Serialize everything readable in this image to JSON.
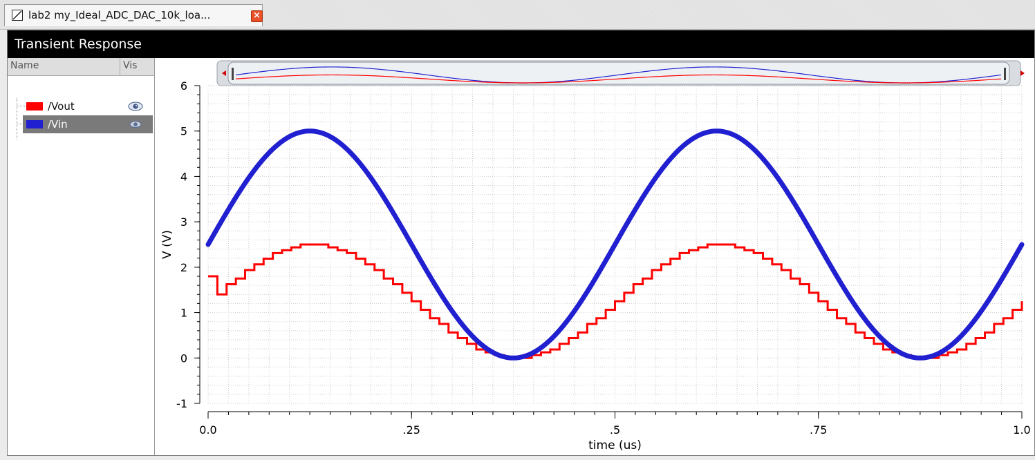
{
  "tab": {
    "title": "lab2 my_Ideal_ADC_DAC_10k_loa...",
    "icon": "waveform-doc-icon",
    "close_icon": "close-icon"
  },
  "window": {
    "title": "Transient Response"
  },
  "legend": {
    "col_name": "Name",
    "col_vis": "Vis",
    "traces": [
      {
        "name": "/Vout",
        "color": "#ff0000",
        "visible_icon": "eye-icon",
        "selected": false
      },
      {
        "name": "/Vin",
        "color": "#2020d0",
        "visible_icon": "eye-icon",
        "selected": true
      }
    ]
  },
  "chart_data": {
    "type": "line",
    "xlabel": "time (us)",
    "ylabel": "V (V)",
    "xlim": [
      0.0,
      1.0
    ],
    "ylim": [
      -1,
      6
    ],
    "x_ticks": [
      "0.0",
      ".25",
      ".5",
      ".75",
      "1.0"
    ],
    "y_ticks": [
      "-1",
      "0",
      "1",
      "2",
      "3",
      "4",
      "5",
      "6"
    ],
    "grid": true,
    "series": [
      {
        "name": "/Vin",
        "color": "#2020d0",
        "shape": "sine",
        "offset": 2.5,
        "amplitude": 2.5,
        "frequency_mhz": 2.0,
        "x_start": 0.0,
        "x_end": 1.0,
        "y_start": 2.5,
        "y_max": 5.0,
        "y_min": 0.0
      },
      {
        "name": "/Vout",
        "color": "#ff0000",
        "shape": "staircase-sine",
        "offset": 1.25,
        "amplitude": 1.25,
        "frequency_mhz": 2.0,
        "x_start": 0.0,
        "x_end": 1.0,
        "initial_value": 1.8,
        "y_max": 2.5,
        "y_min": 0.0
      }
    ]
  }
}
